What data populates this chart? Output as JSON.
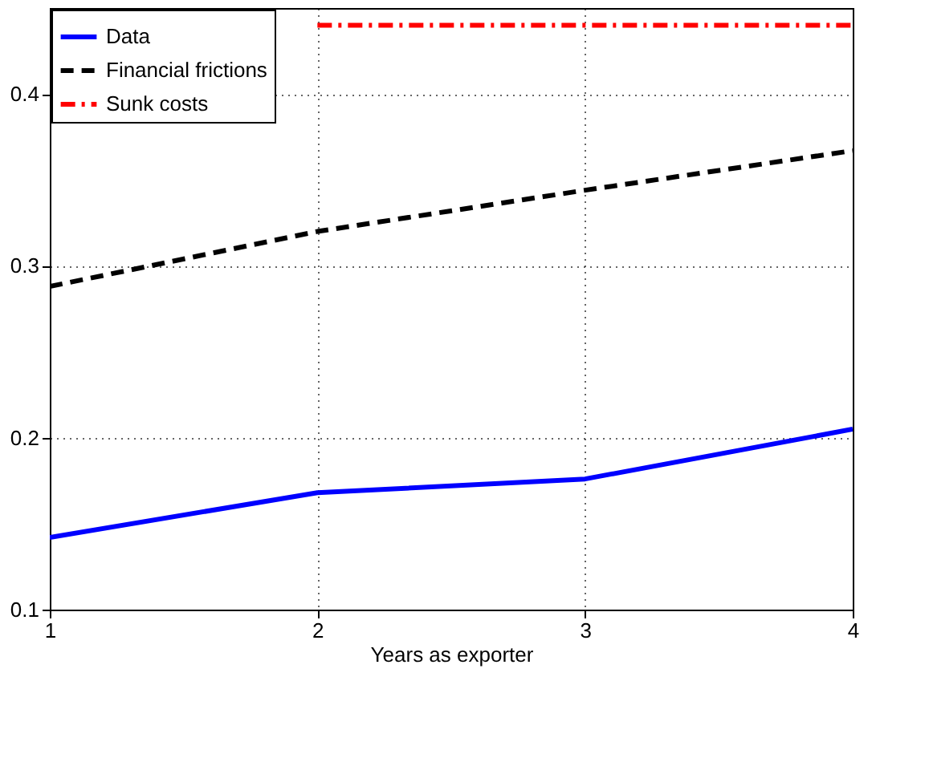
{
  "chart_data": {
    "type": "line",
    "xlabel": "Years as exporter",
    "x": [
      1,
      2,
      3,
      4
    ],
    "series": [
      {
        "name": "Data",
        "color": "#0000ff",
        "line_style": "solid",
        "values": [
          0.142,
          0.168,
          0.176,
          0.205
        ]
      },
      {
        "name": "Financial frictions",
        "color": "#000000",
        "line_style": "dashed",
        "values": [
          0.288,
          0.32,
          0.344,
          0.367
        ]
      },
      {
        "name": "Sunk costs",
        "color": "#ff0000",
        "line_style": "dashdot",
        "values": [
          null,
          0.44,
          0.44,
          0.44
        ]
      }
    ],
    "xlim": [
      1,
      4
    ],
    "xticks": [
      1,
      2,
      3,
      4
    ],
    "ylim": [
      0.1,
      0.45
    ],
    "yticks": [
      0.1,
      0.2,
      0.3,
      0.4
    ],
    "grid": true,
    "legend": "top left",
    "marker": "none"
  }
}
